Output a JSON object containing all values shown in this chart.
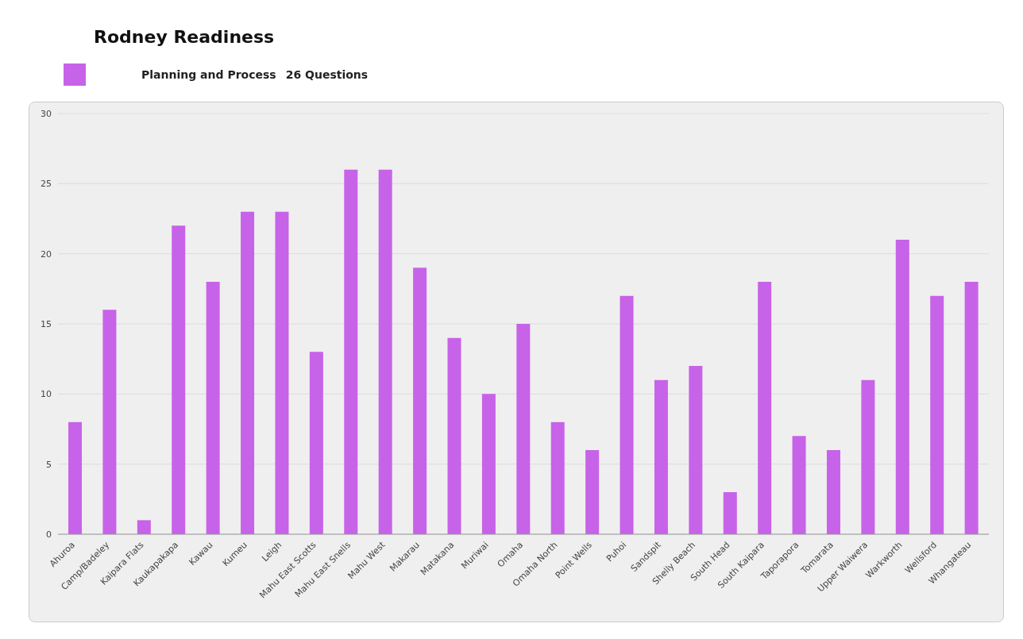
{
  "chart_data": {
    "type": "bar",
    "title": "Rodney Readiness",
    "subtitle": "26 Questions",
    "categories": [
      "Ahuroa",
      "Camp/Badeley",
      "Kaipara Flats",
      "Kaukapakapa",
      "Kawau",
      "Kumeu",
      "Leigh",
      "Mahu East Scotts",
      "Mahu East Snells",
      "Mahu West",
      "Makarau",
      "Matakana",
      "Muriwai",
      "Omaha",
      "Omaha North",
      "Point Wells",
      "Puhoi",
      "Sandspit",
      "Shelly Beach",
      "South Head",
      "South Kaipara",
      "Taporapora",
      "Tomarata",
      "Upper Waiwera",
      "Warkworth",
      "Wellsford",
      "Whangateau"
    ],
    "series": [
      {
        "name": "Planning and Process",
        "color": "#c763e8",
        "values": [
          8,
          16,
          1,
          22,
          18,
          23,
          23,
          13,
          26,
          26,
          19,
          14,
          10,
          15,
          8,
          6,
          17,
          11,
          12,
          3,
          18,
          7,
          6,
          11,
          21,
          17,
          18
        ]
      }
    ],
    "ylim": [
      0,
      30
    ],
    "yticks": [
      0,
      5,
      10,
      15,
      20,
      25,
      30
    ],
    "grid": "y",
    "legend": "top left"
  }
}
